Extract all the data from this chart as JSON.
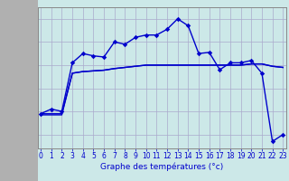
{
  "xlabel": "Graphe des températures (°c)",
  "bg_color": "#cce8e8",
  "plot_bg_color": "#cce8e8",
  "grid_color": "#aaaacc",
  "line_color": "#0000cc",
  "hours": [
    0,
    1,
    2,
    3,
    4,
    5,
    6,
    7,
    8,
    9,
    10,
    11,
    12,
    13,
    14,
    15,
    16,
    17,
    18,
    19,
    20,
    21,
    22,
    23
  ],
  "temp_vals": [
    -2.1,
    -1.9,
    -2.0,
    0.1,
    0.5,
    0.4,
    0.35,
    1.0,
    0.9,
    1.2,
    1.3,
    1.3,
    1.55,
    2.0,
    1.7,
    0.5,
    0.55,
    -0.2,
    0.1,
    0.1,
    0.2,
    -0.35,
    -3.3,
    -3.0
  ],
  "dew_vals": [
    -2.1,
    -2.1,
    -2.1,
    -0.35,
    -0.28,
    -0.25,
    -0.22,
    -0.15,
    -0.1,
    -0.05,
    0.0,
    0.0,
    0.0,
    0.0,
    0.0,
    0.0,
    0.0,
    0.0,
    0.0,
    0.0,
    0.05,
    0.05,
    -0.05,
    -0.1
  ],
  "wet_vals": [
    -2.15,
    -2.15,
    -2.15,
    -0.35,
    -0.28,
    -0.25,
    -0.22,
    -0.15,
    -0.1,
    -0.05,
    0.0,
    0.0,
    0.0,
    0.0,
    0.0,
    0.0,
    0.0,
    0.0,
    0.0,
    0.0,
    0.05,
    0.05,
    -0.05,
    -0.1
  ],
  "ylim": [
    -3.6,
    2.5
  ],
  "yticks": [
    -3,
    -2,
    -1,
    0,
    1,
    2
  ],
  "xlim": [
    -0.3,
    23.3
  ],
  "xticks": [
    0,
    1,
    2,
    3,
    4,
    5,
    6,
    7,
    8,
    9,
    10,
    11,
    12,
    13,
    14,
    15,
    16,
    17,
    18,
    19,
    20,
    21,
    22,
    23
  ],
  "left_border_color": "#888888",
  "xlabel_fontsize": 6.5,
  "tick_fontsize": 5.5,
  "linewidth": 1.0,
  "marker_size": 2.8
}
